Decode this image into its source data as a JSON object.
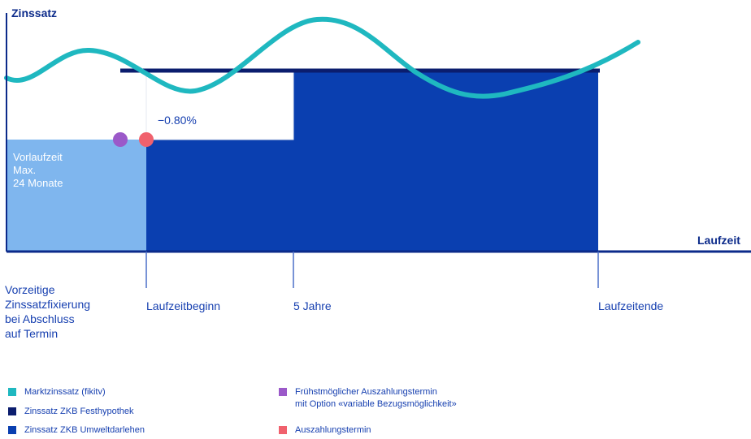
{
  "chart": {
    "y_axis_title": "Zinssatz",
    "x_axis_title": "Laufzeit",
    "inner_label": "Vorlaufzeit\nMax.\n24 Monate",
    "difference_label": "−0.80%",
    "ticks": [
      {
        "label": "Vorzeitige\nZinssatzfixierung\nbei Abschluss\nauf Termin"
      },
      {
        "label": "Laufzeitbeginn"
      },
      {
        "label": "5 Jahre"
      },
      {
        "label": "Laufzeitende"
      }
    ]
  },
  "colors": {
    "market_rate": "#1fb8c0",
    "fixed_mortgage": "#0b1d6e",
    "eco_loan": "#0a3fb0",
    "lead_time": "#7fb6ee",
    "earliest_payout": "#9b59c9",
    "payout": "#f0616d",
    "axis": "#0b2a8a"
  },
  "legend": [
    {
      "label": "Marktzinssatz (fikitv)",
      "color_key": "market_rate"
    },
    {
      "label": "Zinssatz ZKB Festhypothek",
      "color_key": "fixed_mortgage"
    },
    {
      "label": "Zinssatz ZKB Umweltdarlehen",
      "color_key": "eco_loan"
    },
    {
      "label": "Frühstmöglicher Auszahlungstermin\nmit Option «variable Bezugsmöglichkeit»",
      "color_key": "earliest_payout"
    },
    {
      "label": "Auszahlungstermin",
      "color_key": "payout"
    }
  ]
}
